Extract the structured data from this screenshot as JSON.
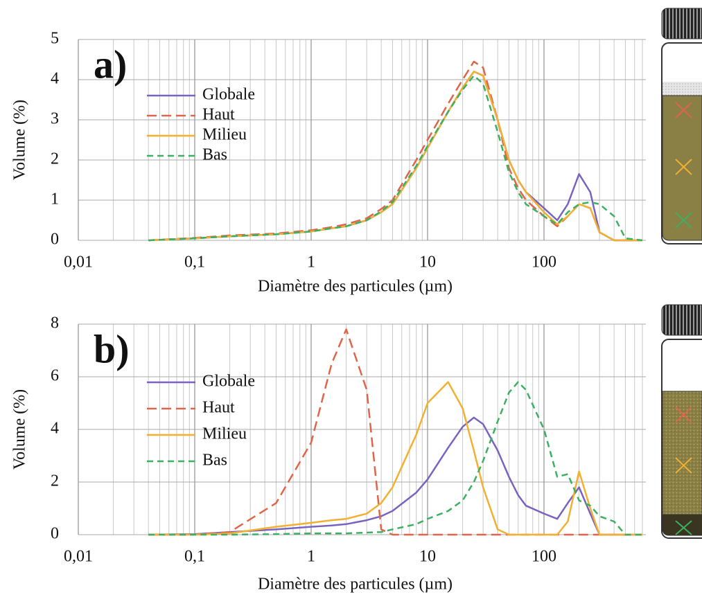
{
  "chart_data": [
    {
      "type": "line",
      "annotation": "a)",
      "xlabel": "Diamètre des particules (µm)",
      "ylabel": "Volume (%)",
      "x": [
        0.04,
        0.1,
        0.2,
        0.5,
        1,
        1.5,
        2,
        3,
        4,
        5,
        8,
        10,
        15,
        20,
        25,
        30,
        40,
        50,
        60,
        70,
        100,
        130,
        160,
        200,
        250,
        300,
        400,
        500,
        700
      ],
      "series": [
        {
          "name": "Globale",
          "color": "#7a62c0",
          "dash": false,
          "values": [
            0,
            0.05,
            0.1,
            0.15,
            0.22,
            0.3,
            0.35,
            0.5,
            0.7,
            0.9,
            1.8,
            2.3,
            3.2,
            3.8,
            4.2,
            4.1,
            3.0,
            2.0,
            1.5,
            1.2,
            0.8,
            0.5,
            0.9,
            1.65,
            1.2,
            0.2,
            0,
            0,
            0
          ]
        },
        {
          "name": "Haut",
          "color": "#e0644a",
          "dash": true,
          "values": [
            0,
            0.06,
            0.12,
            0.17,
            0.25,
            0.33,
            0.4,
            0.55,
            0.78,
            1.0,
            2.0,
            2.5,
            3.4,
            4.0,
            4.45,
            4.3,
            3.0,
            1.8,
            1.3,
            1.0,
            0.6,
            0.35,
            0.6,
            0.9,
            0.8,
            0.2,
            0,
            0,
            0
          ]
        },
        {
          "name": "Milieu",
          "color": "#f2b030",
          "dash": false,
          "values": [
            0,
            0.05,
            0.1,
            0.15,
            0.22,
            0.3,
            0.35,
            0.5,
            0.7,
            0.9,
            1.8,
            2.3,
            3.2,
            3.8,
            4.2,
            4.1,
            3.0,
            2.0,
            1.5,
            1.2,
            0.7,
            0.4,
            0.6,
            0.9,
            0.8,
            0.2,
            0,
            0,
            0
          ]
        },
        {
          "name": "Bas",
          "color": "#3cb060",
          "dash": true,
          "values": [
            0,
            0.05,
            0.1,
            0.15,
            0.22,
            0.3,
            0.35,
            0.5,
            0.72,
            0.95,
            1.85,
            2.35,
            3.2,
            3.75,
            4.1,
            3.9,
            2.7,
            1.7,
            1.2,
            0.9,
            0.6,
            0.4,
            0.7,
            0.9,
            0.95,
            0.9,
            0.6,
            0.05,
            0
          ]
        }
      ],
      "xlim": [
        0.01,
        750
      ],
      "ylim": [
        0,
        5
      ],
      "log_x": true,
      "grid": true,
      "minor_grid": true,
      "legend": "upper left",
      "xticks": [
        {
          "value": 0.01,
          "label": "0,01"
        },
        {
          "value": 0.1,
          "label": "0,1"
        },
        1,
        10,
        100
      ],
      "yticks": [
        0,
        1,
        2,
        3,
        4,
        5
      ]
    },
    {
      "type": "line",
      "annotation": "b)",
      "xlabel": "Diamètre des particules (µm)",
      "ylabel": "Volume (%)",
      "x": [
        0.04,
        0.1,
        0.2,
        0.5,
        1,
        1.5,
        2,
        3,
        4,
        5,
        8,
        10,
        15,
        20,
        25,
        30,
        40,
        50,
        60,
        70,
        100,
        130,
        160,
        200,
        250,
        300,
        400,
        500,
        700
      ],
      "series": [
        {
          "name": "Globale",
          "color": "#7a62c0",
          "dash": false,
          "values": [
            0,
            0.02,
            0.1,
            0.2,
            0.3,
            0.35,
            0.4,
            0.55,
            0.7,
            0.9,
            1.6,
            2.1,
            3.3,
            4.1,
            4.45,
            4.2,
            3.2,
            2.2,
            1.5,
            1.1,
            0.8,
            0.6,
            1.2,
            1.8,
            0.8,
            0,
            0,
            0,
            0
          ]
        },
        {
          "name": "Haut",
          "color": "#e0644a",
          "dash": true,
          "values": [
            0,
            0,
            0.1,
            1.2,
            3.5,
            6.5,
            7.8,
            5.5,
            0.2,
            0,
            0,
            0,
            0,
            0,
            0,
            0,
            0,
            0,
            0,
            0,
            0,
            0,
            0,
            0,
            0,
            0,
            0,
            0,
            0
          ]
        },
        {
          "name": "Milieu",
          "color": "#f2b030",
          "dash": false,
          "values": [
            0,
            0,
            0.05,
            0.3,
            0.45,
            0.55,
            0.6,
            0.8,
            1.2,
            1.8,
            3.8,
            5.0,
            5.8,
            4.8,
            3.2,
            1.8,
            0.2,
            0,
            0,
            0,
            0,
            0,
            0.5,
            2.4,
            1.0,
            0,
            0,
            0,
            0
          ]
        },
        {
          "name": "Bas",
          "color": "#3cb060",
          "dash": true,
          "values": [
            0,
            0,
            0,
            0.02,
            0.05,
            0.05,
            0.05,
            0.08,
            0.1,
            0.2,
            0.4,
            0.6,
            0.9,
            1.3,
            2.0,
            2.8,
            4.3,
            5.4,
            5.8,
            5.5,
            4.0,
            2.2,
            2.3,
            1.3,
            1.1,
            0.7,
            0.5,
            0,
            0
          ]
        }
      ],
      "xlim": [
        0.01,
        750
      ],
      "ylim": [
        0,
        8
      ],
      "log_x": true,
      "grid": true,
      "minor_grid": true,
      "legend": "upper left",
      "xticks": [
        {
          "value": 0.01,
          "label": "0,01"
        },
        {
          "value": 0.1,
          "label": "0,1"
        },
        1,
        10,
        100
      ],
      "yticks": [
        0,
        2,
        4,
        6,
        8
      ]
    }
  ]
}
